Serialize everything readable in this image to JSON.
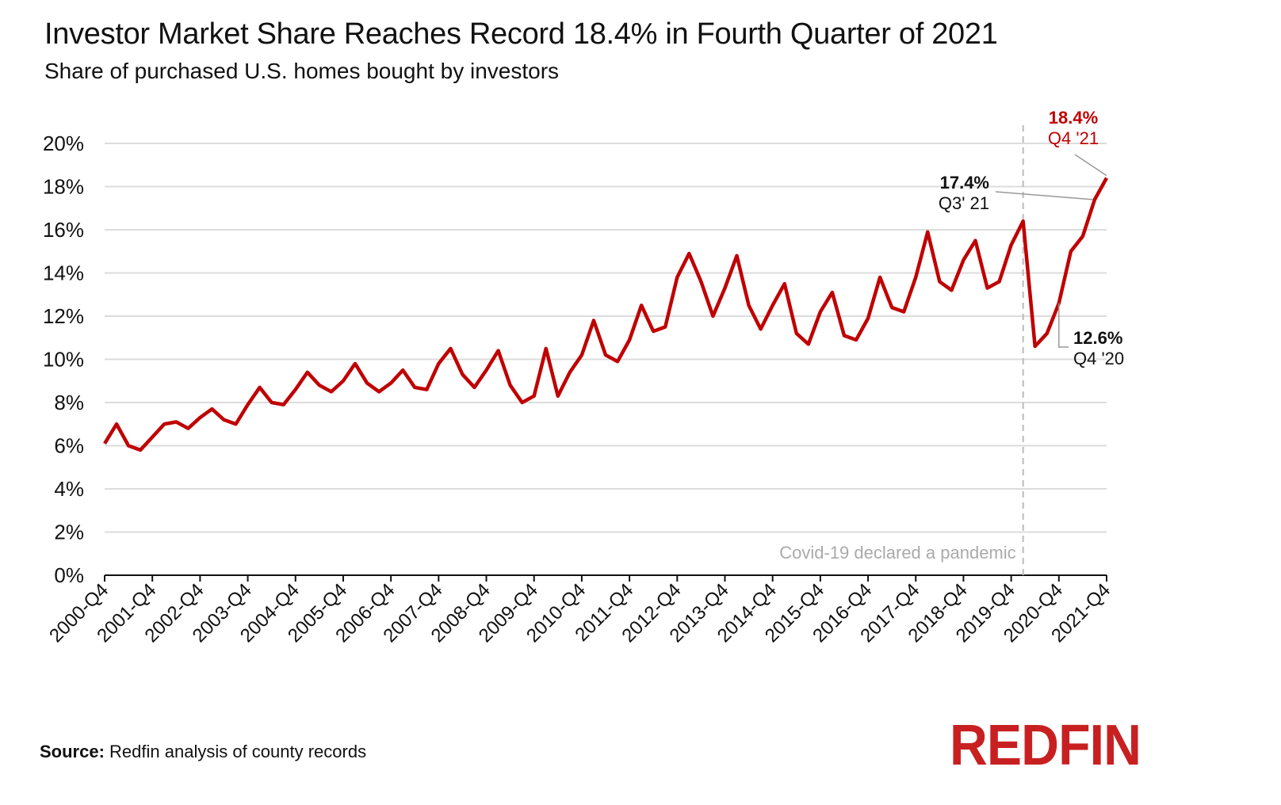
{
  "chart_data": {
    "type": "line",
    "title": "Investor Market Share Reaches Record 18.4% in Fourth Quarter of 2021",
    "subtitle": "Share of purchased U.S. homes bought by investors",
    "xlabel": "",
    "ylabel": "",
    "ylim": [
      0,
      20
    ],
    "y_ticks": [
      "0%",
      "2%",
      "4%",
      "6%",
      "8%",
      "10%",
      "12%",
      "14%",
      "16%",
      "18%",
      "20%"
    ],
    "y_tick_values": [
      0,
      2,
      4,
      6,
      8,
      10,
      12,
      14,
      16,
      18,
      20
    ],
    "x_tick_labels": [
      "2000-Q4",
      "2001-Q4",
      "2002-Q4",
      "2003-Q4",
      "2004-Q4",
      "2005-Q4",
      "2006-Q4",
      "2007-Q4",
      "2008-Q4",
      "2009-Q4",
      "2010-Q4",
      "2011-Q4",
      "2012-Q4",
      "2013-Q4",
      "2014-Q4",
      "2015-Q4",
      "2016-Q4",
      "2017-Q4",
      "2018-Q4",
      "2019-Q4",
      "2020-Q4",
      "2021-Q4"
    ],
    "grid": true,
    "line_color": "#C00000",
    "x": [
      "2000-Q4",
      "2001-Q1",
      "2001-Q2",
      "2001-Q3",
      "2001-Q4",
      "2002-Q1",
      "2002-Q2",
      "2002-Q3",
      "2002-Q4",
      "2003-Q1",
      "2003-Q2",
      "2003-Q3",
      "2003-Q4",
      "2004-Q1",
      "2004-Q2",
      "2004-Q3",
      "2004-Q4",
      "2005-Q1",
      "2005-Q2",
      "2005-Q3",
      "2005-Q4",
      "2006-Q1",
      "2006-Q2",
      "2006-Q3",
      "2006-Q4",
      "2007-Q1",
      "2007-Q2",
      "2007-Q3",
      "2007-Q4",
      "2008-Q1",
      "2008-Q2",
      "2008-Q3",
      "2008-Q4",
      "2009-Q1",
      "2009-Q2",
      "2009-Q3",
      "2009-Q4",
      "2010-Q1",
      "2010-Q2",
      "2010-Q3",
      "2010-Q4",
      "2011-Q1",
      "2011-Q2",
      "2011-Q3",
      "2011-Q4",
      "2012-Q1",
      "2012-Q2",
      "2012-Q3",
      "2012-Q4",
      "2013-Q1",
      "2013-Q2",
      "2013-Q3",
      "2013-Q4",
      "2014-Q1",
      "2014-Q2",
      "2014-Q3",
      "2014-Q4",
      "2015-Q1",
      "2015-Q2",
      "2015-Q3",
      "2015-Q4",
      "2016-Q1",
      "2016-Q2",
      "2016-Q3",
      "2016-Q4",
      "2017-Q1",
      "2017-Q2",
      "2017-Q3",
      "2017-Q4",
      "2018-Q1",
      "2018-Q2",
      "2018-Q3",
      "2018-Q4",
      "2019-Q1",
      "2019-Q2",
      "2019-Q3",
      "2019-Q4",
      "2020-Q1",
      "2020-Q2",
      "2020-Q3",
      "2020-Q4",
      "2021-Q1",
      "2021-Q2",
      "2021-Q3",
      "2021-Q4"
    ],
    "series": [
      {
        "values": [
          6.1,
          7.0,
          6.0,
          5.8,
          6.4,
          7.0,
          7.1,
          6.8,
          7.3,
          7.7,
          7.2,
          7.0,
          7.9,
          8.7,
          8.0,
          7.9,
          8.6,
          9.4,
          8.8,
          8.5,
          9.0,
          9.8,
          8.9,
          8.5,
          8.9,
          9.5,
          8.7,
          8.6,
          9.8,
          10.5,
          9.3,
          8.7,
          9.5,
          10.4,
          8.8,
          8.0,
          8.3,
          10.5,
          8.3,
          9.4,
          10.2,
          11.8,
          10.2,
          9.9,
          10.9,
          12.5,
          11.3,
          11.5,
          13.8,
          14.9,
          13.6,
          12.0,
          13.3,
          14.8,
          12.5,
          11.4,
          12.5,
          13.5,
          11.2,
          10.7,
          12.2,
          13.1,
          11.1,
          10.9,
          11.9,
          13.8,
          12.4,
          12.2,
          13.8,
          15.9,
          13.6,
          13.2,
          14.6,
          15.5,
          13.3,
          13.6,
          15.3,
          16.4,
          10.6,
          11.2,
          12.6,
          15.0,
          15.7,
          17.4,
          18.4
        ]
      }
    ],
    "annotations": [
      {
        "value": "18.4%",
        "label": "Q4 '21",
        "x": "2021-Q4",
        "y": 18.4,
        "color": "#C00000"
      },
      {
        "value": "17.4%",
        "label": "Q3' 21",
        "x": "2021-Q3",
        "y": 17.4,
        "color": "#111111"
      },
      {
        "value": "12.6%",
        "label": "Q4 '20",
        "x": "2020-Q4",
        "y": 12.6,
        "color": "#111111"
      }
    ],
    "reference_line": {
      "x": "2020-Q1",
      "label": "Covid-19 declared a pandemic"
    }
  },
  "source": {
    "label": "Source:",
    "text": " Redfin analysis of county records"
  },
  "logo": "REDFIN"
}
